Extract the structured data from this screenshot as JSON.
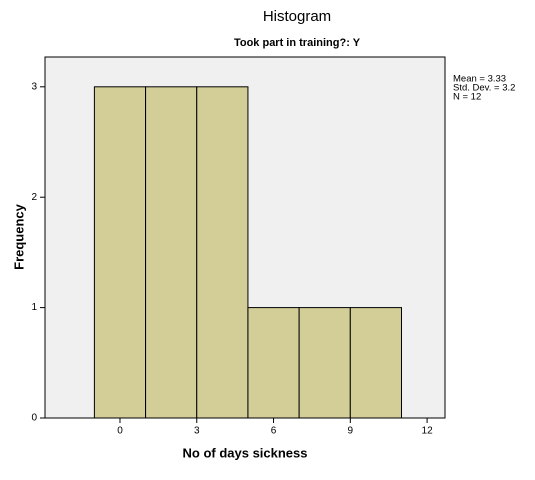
{
  "chart_data": {
    "type": "histogram",
    "title": "Histogram",
    "subtitle": "Took part in training?: Y",
    "xlabel": "No of days sickness",
    "ylabel": "Frequency",
    "bins": [
      -1,
      1,
      3,
      5,
      7,
      9,
      11
    ],
    "counts": [
      3,
      3,
      3,
      1,
      1,
      1
    ],
    "color": "#d3ce97",
    "xlim": [
      -2.93,
      12.7
    ],
    "xticks": [
      0,
      3,
      6,
      9,
      12
    ],
    "ylim": [
      0,
      3.27
    ],
    "yticks": [
      0,
      1,
      2,
      3
    ],
    "annotations": [
      "Mean = 3.33",
      "Std. Dev. = 3.2",
      "N = 12"
    ]
  }
}
